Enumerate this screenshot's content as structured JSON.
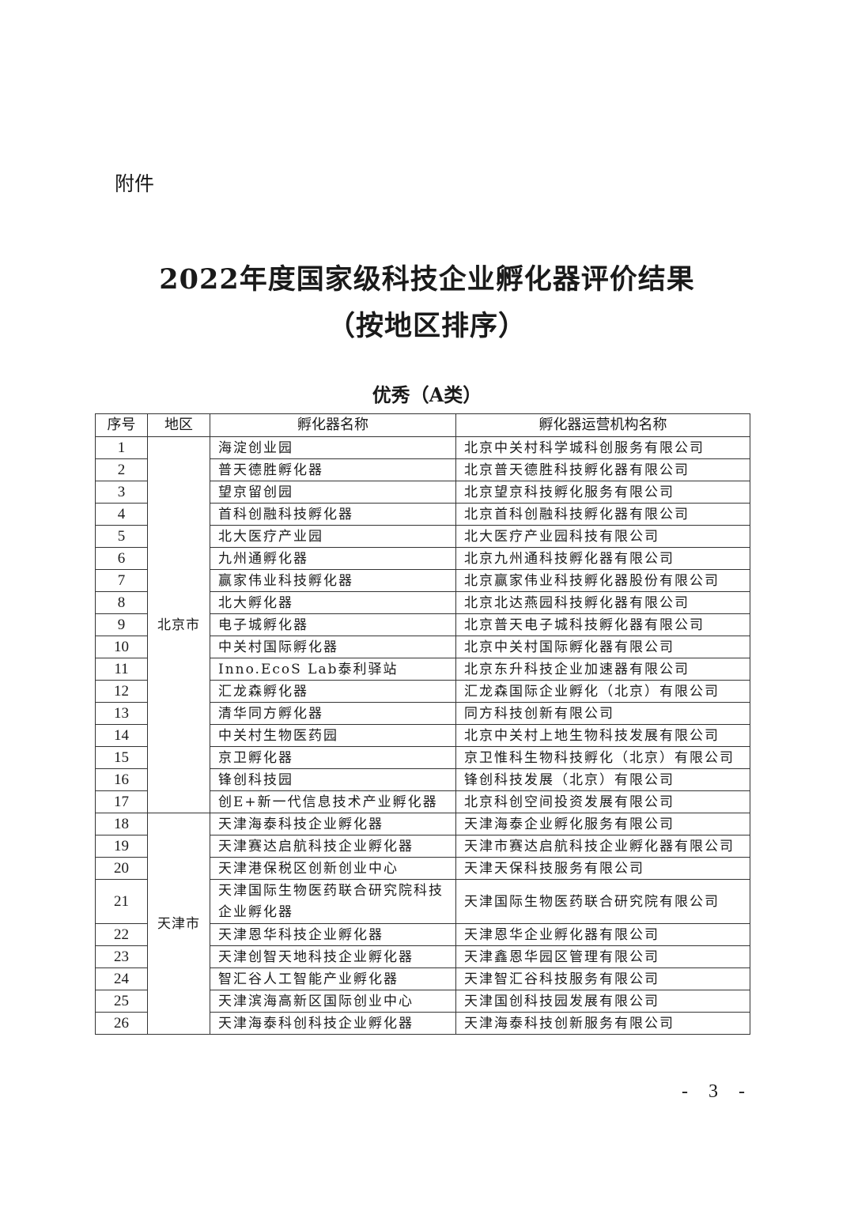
{
  "attachment_label": "附件",
  "title_line1": "2022年度国家级科技企业孵化器评价结果",
  "title_line2": "（按地区排序）",
  "category": "优秀（A类）",
  "table": {
    "headers": [
      "序号",
      "地区",
      "孵化器名称",
      "孵化器运营机构名称"
    ],
    "regions": [
      {
        "name": "北京市",
        "rows": [
          [
            "1",
            "海淀创业园",
            "北京中关村科学城科创服务有限公司"
          ],
          [
            "2",
            "普天德胜孵化器",
            "北京普天德胜科技孵化器有限公司"
          ],
          [
            "3",
            "望京留创园",
            "北京望京科技孵化服务有限公司"
          ],
          [
            "4",
            "首科创融科技孵化器",
            "北京首科创融科技孵化器有限公司"
          ],
          [
            "5",
            "北大医疗产业园",
            "北大医疗产业园科技有限公司"
          ],
          [
            "6",
            "九州通孵化器",
            "北京九州通科技孵化器有限公司"
          ],
          [
            "7",
            "赢家伟业科技孵化器",
            "北京赢家伟业科技孵化器股份有限公司"
          ],
          [
            "8",
            "北大孵化器",
            "北京北达燕园科技孵化器有限公司"
          ],
          [
            "9",
            "电子城孵化器",
            "北京普天电子城科技孵化器有限公司"
          ],
          [
            "10",
            "中关村国际孵化器",
            "北京中关村国际孵化器有限公司"
          ],
          [
            "11",
            "Inno.EcoS Lab泰利驿站",
            "北京东升科技企业加速器有限公司"
          ],
          [
            "12",
            "汇龙森孵化器",
            "汇龙森国际企业孵化（北京）有限公司"
          ],
          [
            "13",
            "清华同方孵化器",
            "同方科技创新有限公司"
          ],
          [
            "14",
            "中关村生物医药园",
            "北京中关村上地生物科技发展有限公司"
          ],
          [
            "15",
            "京卫孵化器",
            "京卫惟科生物科技孵化（北京）有限公司"
          ],
          [
            "16",
            "锋创科技园",
            "锋创科技发展（北京）有限公司"
          ],
          [
            "17",
            "创E+新一代信息技术产业孵化器",
            "北京科创空间投资发展有限公司"
          ]
        ]
      },
      {
        "name": "天津市",
        "rows": [
          [
            "18",
            "天津海泰科技企业孵化器",
            "天津海泰企业孵化服务有限公司"
          ],
          [
            "19",
            "天津赛达启航科技企业孵化器",
            "天津市赛达启航科技企业孵化器有限公司"
          ],
          [
            "20",
            "天津港保税区创新创业中心",
            "天津天保科技服务有限公司"
          ],
          [
            "21",
            "天津国际生物医药联合研究院科技企业孵化器",
            "天津国际生物医药联合研究院有限公司"
          ],
          [
            "22",
            "天津恩华科技企业孵化器",
            "天津恩华企业孵化器有限公司"
          ],
          [
            "23",
            "天津创智天地科技企业孵化器",
            "天津鑫恩华园区管理有限公司"
          ],
          [
            "24",
            "智汇谷人工智能产业孵化器",
            "天津智汇谷科技服务有限公司"
          ],
          [
            "25",
            "天津滨海高新区国际创业中心",
            "天津国创科技园发展有限公司"
          ],
          [
            "26",
            "天津海泰科创科技企业孵化器",
            "天津海泰科技创新服务有限公司"
          ]
        ]
      }
    ]
  },
  "page_number": "- 3 -"
}
